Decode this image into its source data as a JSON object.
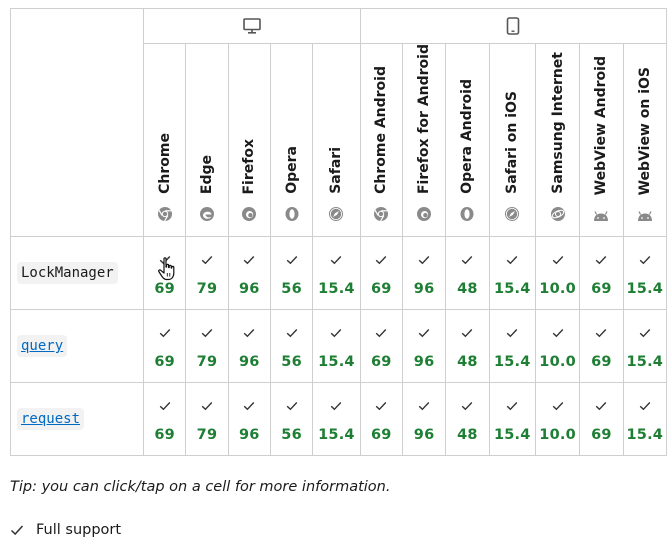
{
  "platforms": {
    "desktop_icon": "desktop-monitor-icon",
    "mobile_icon": "mobile-phone-icon"
  },
  "browsers": [
    {
      "name": "Chrome",
      "icon": "chrome-logo-icon"
    },
    {
      "name": "Edge",
      "icon": "edge-logo-icon"
    },
    {
      "name": "Firefox",
      "icon": "firefox-logo-icon"
    },
    {
      "name": "Opera",
      "icon": "opera-logo-icon"
    },
    {
      "name": "Safari",
      "icon": "safari-logo-icon"
    },
    {
      "name": "Chrome Android",
      "icon": "chrome-logo-icon"
    },
    {
      "name": "Firefox for Android",
      "icon": "firefox-logo-icon"
    },
    {
      "name": "Opera Android",
      "icon": "opera-logo-icon"
    },
    {
      "name": "Safari on iOS",
      "icon": "safari-logo-icon"
    },
    {
      "name": "Samsung Internet",
      "icon": "samsung-internet-logo-icon"
    },
    {
      "name": "WebView Android",
      "icon": "android-logo-icon"
    },
    {
      "name": "WebView on iOS",
      "icon": "android-logo-icon"
    }
  ],
  "rows": [
    {
      "feature": "LockManager",
      "is_link": false,
      "versions": [
        "69",
        "79",
        "96",
        "56",
        "15.4",
        "69",
        "96",
        "48",
        "15.4",
        "10.0",
        "69",
        "15.4"
      ]
    },
    {
      "feature": "query",
      "is_link": true,
      "versions": [
        "69",
        "79",
        "96",
        "56",
        "15.4",
        "69",
        "96",
        "48",
        "15.4",
        "10.0",
        "69",
        "15.4"
      ]
    },
    {
      "feature": "request",
      "is_link": true,
      "versions": [
        "69",
        "79",
        "96",
        "56",
        "15.4",
        "69",
        "96",
        "48",
        "15.4",
        "10.0",
        "69",
        "15.4"
      ]
    }
  ],
  "support_status": "Full support",
  "tip": "Tip: you can click/tap on a cell for more information.",
  "legend": {
    "icon": "checkmark-icon",
    "label": "Full support"
  },
  "colors": {
    "version_green": "#1e7e34",
    "link_blue": "#0069c2",
    "border": "#cfcfcf"
  }
}
